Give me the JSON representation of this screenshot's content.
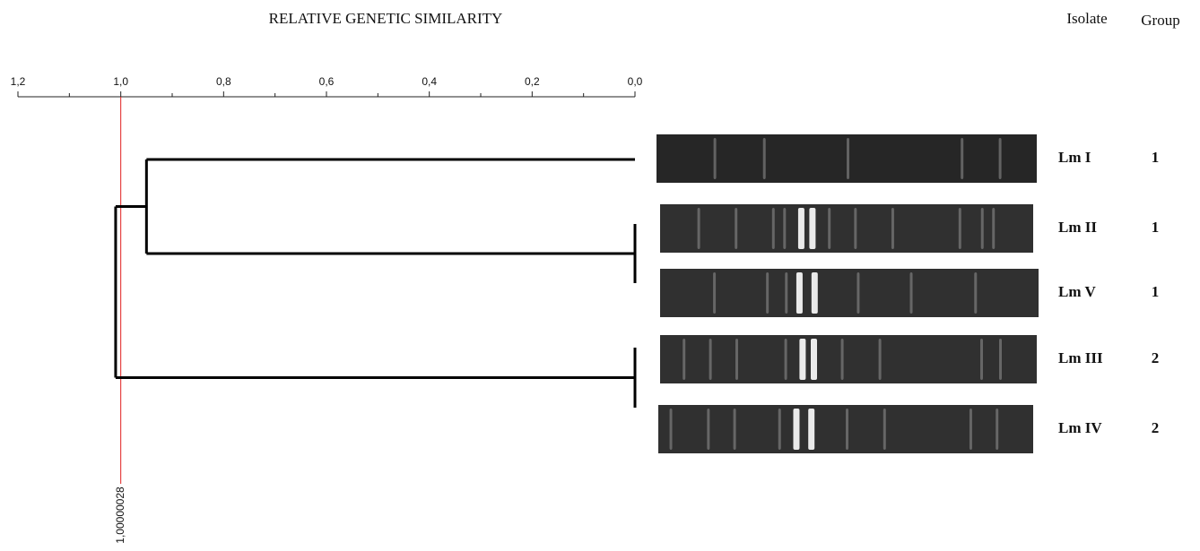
{
  "chart_data": {
    "type": "dendrogram",
    "title": "RELATIVE GENETIC SIMILARITY",
    "xlim": [
      1.2,
      0.0
    ],
    "xticks": [
      {
        "value": 1.2,
        "label": "1,2"
      },
      {
        "value": 1.0,
        "label": "1,0"
      },
      {
        "value": 0.8,
        "label": "0,8"
      },
      {
        "value": 0.6,
        "label": "0,6"
      },
      {
        "value": 0.4,
        "label": "0,4"
      },
      {
        "value": 0.2,
        "label": "0,2"
      },
      {
        "value": 0.0,
        "label": "0,0"
      }
    ],
    "xminorticks": [
      1.1,
      0.9,
      0.7,
      0.5,
      0.3,
      0.1
    ],
    "cutoff": {
      "value": 1.00000028,
      "label": "1,00000028",
      "color": "#e02020"
    },
    "column_headers": [
      "Isolate",
      "Group"
    ],
    "isolates": [
      "Lm I",
      "Lm II",
      "Lm V",
      "Lm III",
      "Lm IV"
    ],
    "groups": [
      1,
      1,
      1,
      2,
      2
    ],
    "merges": [
      {
        "children": [
          1,
          2
        ],
        "height": 0.0
      },
      {
        "children": [
          3,
          4
        ],
        "height": 0.0
      },
      {
        "children": [
          0,
          5
        ],
        "height": 0.95
      },
      {
        "children": [
          7,
          6
        ],
        "height": 1.01
      }
    ]
  }
}
